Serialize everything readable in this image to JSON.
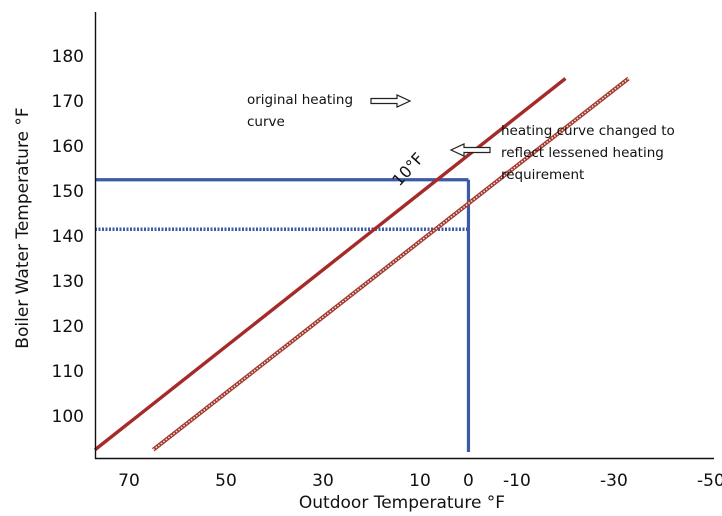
{
  "chart_data": {
    "type": "line",
    "title": "",
    "xlabel": "Outdoor Temperature °F",
    "ylabel": "Boiler Water Temperature °F",
    "x_reversed": true,
    "xlim": [
      77,
      -77
    ],
    "ylim": [
      92,
      186
    ],
    "x_ticks": [
      70,
      50,
      30,
      10,
      0,
      -10,
      -30,
      -50
    ],
    "x_tick_labels": [
      "70",
      "50",
      "30",
      "10",
      "0",
      "-10",
      "-30",
      "-50"
    ],
    "y_ticks": [
      100,
      110,
      120,
      130,
      140,
      150,
      160,
      170,
      180
    ],
    "y_tick_labels": [
      "100",
      "110",
      "120",
      "130",
      "140",
      "150",
      "160",
      "170",
      "180"
    ],
    "grid": false,
    "series": [
      {
        "name": "original heating curve",
        "style": "solid",
        "color": "#a52a2a",
        "x": [
          77,
          -20
        ],
        "y": [
          92.5,
          175
        ]
      },
      {
        "name": "heating curve changed to reflect lessened heating requirement",
        "style": "dotted",
        "color": "#a0382e",
        "x": [
          65,
          -33
        ],
        "y": [
          92.5,
          175
        ]
      }
    ],
    "reference_lines": [
      {
        "color": "#3b5aa8",
        "style": "solid",
        "x": [
          77,
          0
        ],
        "y": [
          152.5,
          152.5
        ]
      },
      {
        "color": "#3b5aa8",
        "style": "solid",
        "x": [
          0,
          0
        ],
        "y": [
          152.5,
          92
        ]
      },
      {
        "color": "#3b5aa8",
        "style": "dotted",
        "x": [
          77,
          0
        ],
        "y": [
          141.5,
          141.5
        ]
      }
    ],
    "annotations": [
      {
        "text_lines": [
          "original heating",
          "curve"
        ],
        "arrow": "right"
      },
      {
        "text_lines": [
          "heating curve changed to",
          "reflect lessened heating",
          "requirement"
        ],
        "arrow": "left"
      },
      {
        "text": "10°F",
        "rotated": true
      }
    ]
  }
}
